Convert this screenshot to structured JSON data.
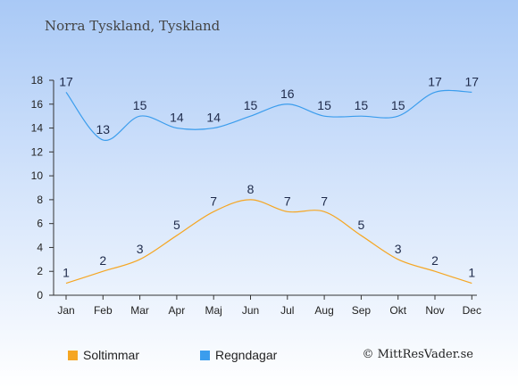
{
  "chart_data": {
    "type": "line",
    "title": "Norra Tyskland, Tyskland",
    "categories": [
      "Jan",
      "Feb",
      "Mar",
      "Apr",
      "Maj",
      "Jun",
      "Jul",
      "Aug",
      "Sep",
      "Okt",
      "Nov",
      "Dec"
    ],
    "ylim": [
      0,
      18
    ],
    "yticks": [
      0,
      2,
      4,
      6,
      8,
      10,
      12,
      14,
      16,
      18
    ],
    "grid": false,
    "legend_position": "bottom-left",
    "series": [
      {
        "name": "Soltimmar",
        "color": "#f5a623",
        "values": [
          1,
          2,
          3,
          5,
          7,
          8,
          7,
          7,
          5,
          3,
          2,
          1
        ]
      },
      {
        "name": "Regndagar",
        "color": "#3b9ded",
        "values": [
          17,
          13,
          15,
          14,
          14,
          15,
          16,
          15,
          15,
          15,
          17,
          17
        ]
      }
    ]
  },
  "copyright": "© MittResVader.se"
}
